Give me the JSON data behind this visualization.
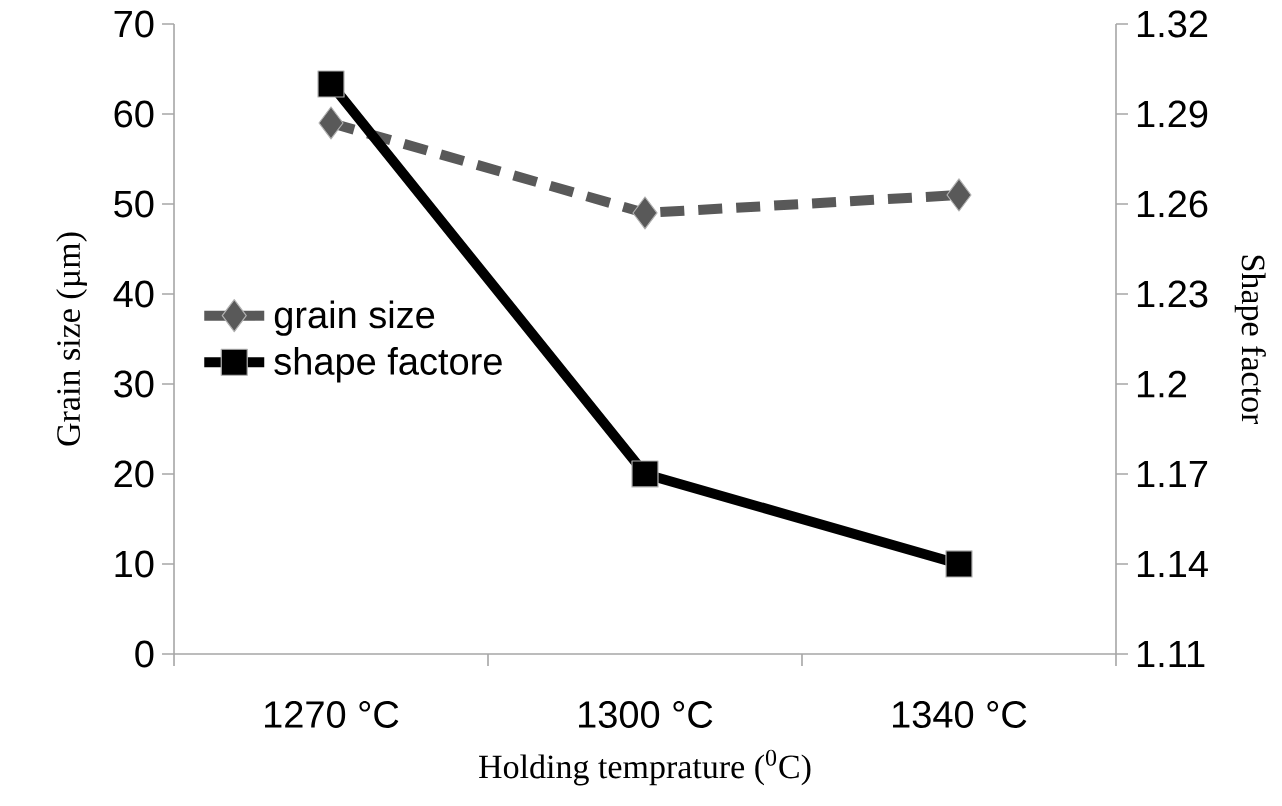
{
  "chart_data": {
    "type": "line",
    "xlabel": "Holding temprature ($^{0}$C)",
    "ylabel": "Grain size (µm)",
    "y2label": "Shape factor",
    "categories": [
      "1270 °C",
      "1300 °C",
      "1340 °C"
    ],
    "series": [
      {
        "name": "grain size",
        "color": "#595959",
        "values": [
          59,
          49,
          51
        ],
        "marker": "diamond",
        "line_style": "dashed"
      },
      {
        "name": "shape factore",
        "color": "#000000",
        "values": [
          1.3,
          1.17,
          1.14
        ],
        "marker": "square",
        "line_style": "solid",
        "axis": "y2"
      }
    ],
    "ylim": [
      0,
      70
    ],
    "yticks": [
      0,
      10,
      20,
      30,
      40,
      50,
      60,
      70
    ],
    "y2lim": [
      1.11,
      1.32
    ],
    "y2ticks": [
      1.11,
      1.14,
      1.17,
      1.2,
      1.23,
      1.26,
      1.29,
      1.32
    ],
    "grid": false,
    "legend": "left"
  }
}
